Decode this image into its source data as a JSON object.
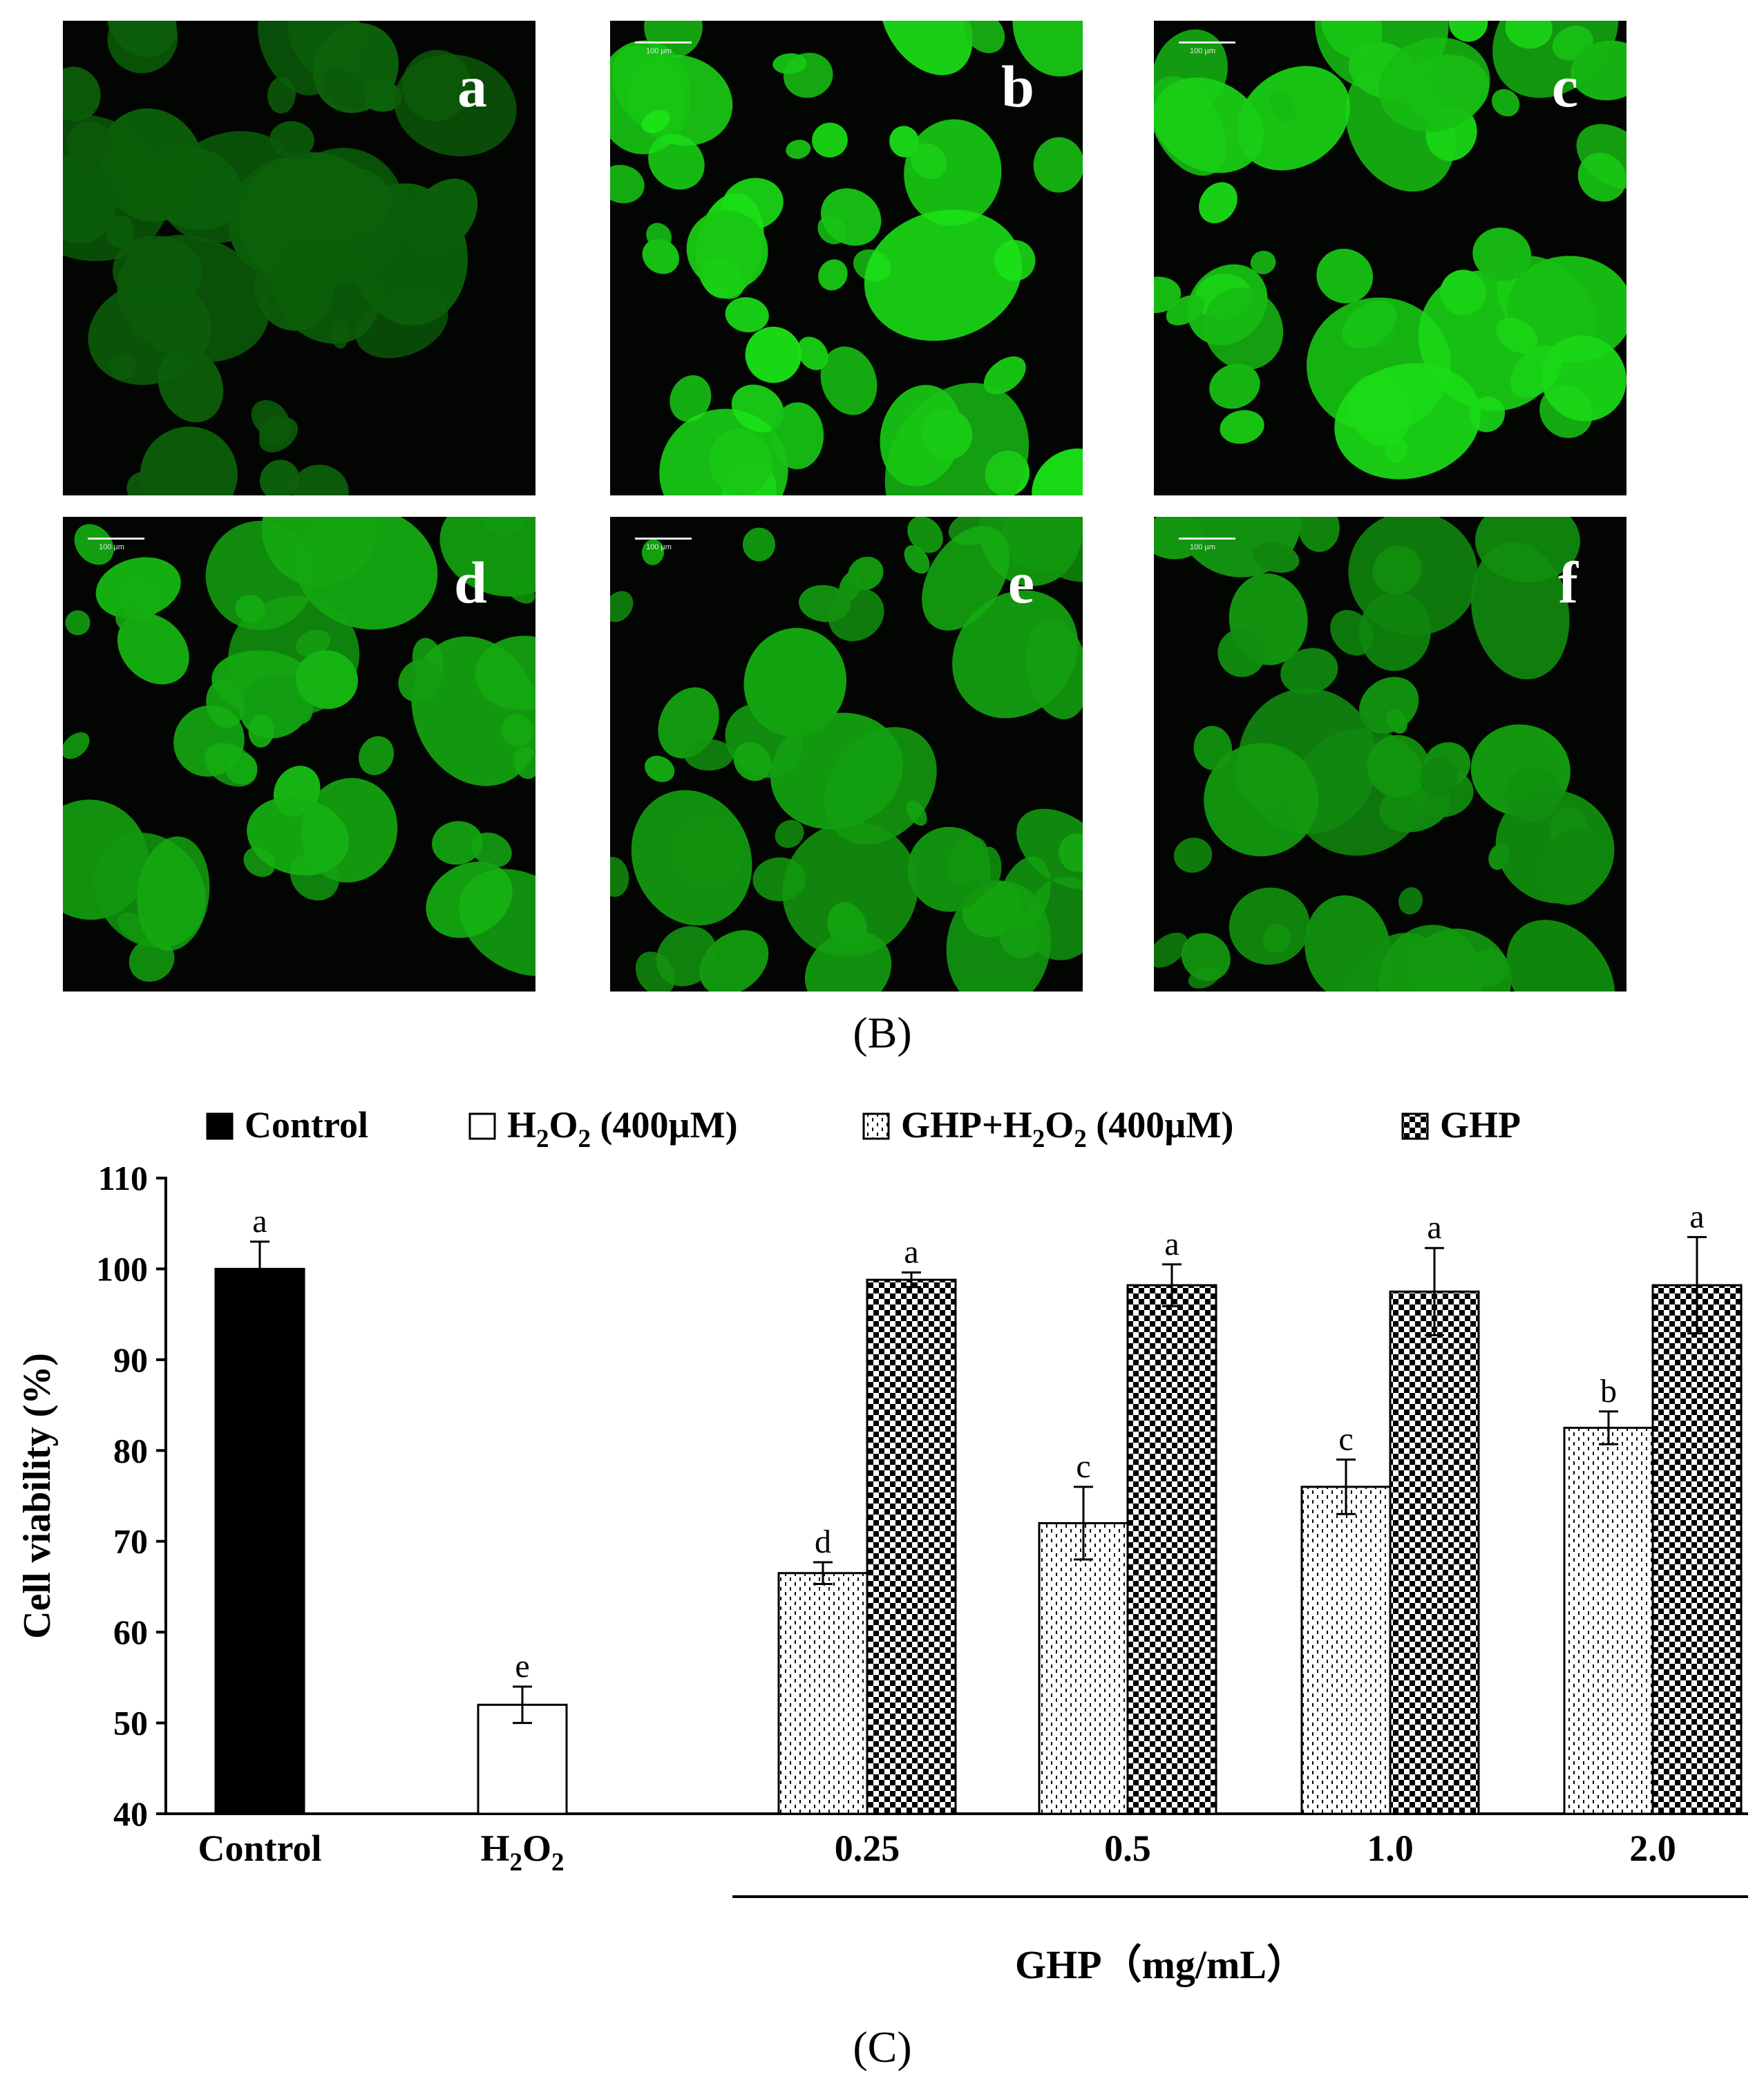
{
  "panels": [
    {
      "label": "a",
      "scale": "",
      "brightness": 0.22
    },
    {
      "label": "b",
      "scale": "100 µm",
      "brightness": 1.0
    },
    {
      "label": "c",
      "scale": "100 µm",
      "brightness": 0.92
    },
    {
      "label": "d",
      "scale": "100 µm",
      "brightness": 0.7
    },
    {
      "label": "e",
      "scale": "100 µm",
      "brightness": 0.64
    },
    {
      "label": "f",
      "scale": "100 µm",
      "brightness": 0.55
    }
  ],
  "captions": {
    "b": "(B)",
    "c": "(C)"
  },
  "colors": {
    "panel_bg": "#020502",
    "cell_green": "#16e016"
  },
  "chart_data": {
    "type": "bar",
    "legend": {
      "placement": "top",
      "entries": [
        {
          "name": "Control",
          "pattern": "solid-black"
        },
        {
          "name": "H2O2 (400µM)",
          "pattern": "white"
        },
        {
          "name": "GHP+H2O2 (400µM)",
          "pattern": "dotted"
        },
        {
          "name": "GHP",
          "pattern": "checker"
        }
      ]
    },
    "ylabel": "Cell viability (%)",
    "ylim": [
      40,
      110
    ],
    "yticks": [
      40,
      50,
      60,
      70,
      80,
      90,
      100,
      110
    ],
    "categories": [
      "Control",
      "H2O2",
      "0.25",
      "0.5",
      "1.0",
      "2.0"
    ],
    "group_label": "GHP（mg/mL）",
    "bars": [
      {
        "category": "Control",
        "series": "Control",
        "value": 100.0,
        "error": 3.0,
        "letter": "a"
      },
      {
        "category": "H2O2",
        "series": "H2O2 (400µM)",
        "value": 52.0,
        "error": 2.0,
        "letter": "e"
      },
      {
        "category": "0.25",
        "series": "GHP+H2O2 (400µM)",
        "value": 66.5,
        "error": 1.2,
        "letter": "d"
      },
      {
        "category": "0.25",
        "series": "GHP",
        "value": 98.8,
        "error": 0.8,
        "letter": "a"
      },
      {
        "category": "0.5",
        "series": "GHP+H2O2 (400µM)",
        "value": 72.0,
        "error": 4.0,
        "letter": "c"
      },
      {
        "category": "0.5",
        "series": "GHP",
        "value": 98.2,
        "error": 2.3,
        "letter": "a"
      },
      {
        "category": "1.0",
        "series": "GHP+H2O2 (400µM)",
        "value": 76.0,
        "error": 3.0,
        "letter": "c"
      },
      {
        "category": "1.0",
        "series": "GHP",
        "value": 97.5,
        "error": 4.8,
        "letter": "a"
      },
      {
        "category": "2.0",
        "series": "GHP+H2O2 (400µM)",
        "value": 82.5,
        "error": 1.8,
        "letter": "b"
      },
      {
        "category": "2.0",
        "series": "GHP",
        "value": 98.2,
        "error": 5.3,
        "letter": "a"
      }
    ]
  }
}
